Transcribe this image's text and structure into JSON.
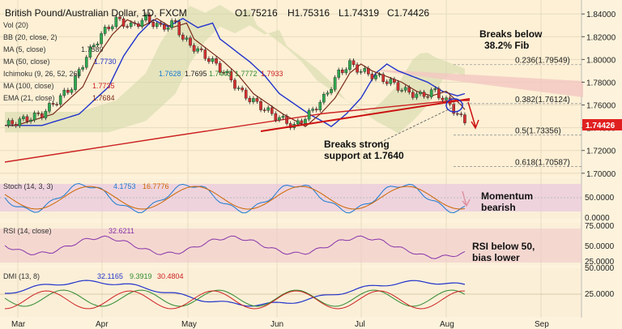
{
  "chart_data": {
    "type": "candlestick",
    "title": "British Pound/Australian Dollar, 1D, FXCM",
    "ohlc": {
      "open": "O1.75216",
      "high": "H1.75316",
      "low": "L1.74319",
      "close": "C1.74426"
    },
    "last_price": "1.74426",
    "x_ticks": [
      "Mar",
      "Apr",
      "May",
      "Jun",
      "Jul",
      "Aug",
      "Sep"
    ],
    "price_axis": {
      "ticks": [
        "1.84000",
        "1.82000",
        "1.80000",
        "1.78000",
        "1.76000",
        "1.74000",
        "1.72000",
        "1.70000"
      ],
      "ylim": [
        1.697,
        1.848
      ]
    },
    "legend": [
      {
        "label": "Vol (20)",
        "value": "",
        "color": "#888888"
      },
      {
        "label": "BB (20, close, 2)",
        "value": "",
        "color": "#888888"
      },
      {
        "label": "MA (5, close)",
        "value": "1.7589",
        "color": "#444444"
      },
      {
        "label": "MA (50, close)",
        "value": "1.7730",
        "color": "#2233cc"
      },
      {
        "label": "Ichimoku (9, 26, 52, 26)",
        "values": [
          "1.7628",
          "1.7695",
          "1.7443",
          "1.7772",
          "1.7933"
        ],
        "colors": [
          "#1a7ad0",
          "#222222",
          "#2f8a2f",
          "#2f8a2f",
          "#cc2222"
        ]
      },
      {
        "label": "MA (100, close)",
        "value": "1.7735",
        "color": "#cc2222"
      },
      {
        "label": "EMA (21, close)",
        "value": "1.7684",
        "color": "#7a2a1a"
      }
    ],
    "fib_levels": [
      {
        "label": "0.236(1.79549)",
        "value": 1.79549
      },
      {
        "label": "0.382(1.76124)",
        "value": 1.76124
      },
      {
        "label": "0.5(1.73356)",
        "value": 1.73356
      },
      {
        "label": "0.618(1.70587)",
        "value": 1.70587
      }
    ],
    "annotations": [
      {
        "text": [
          "Breaks below",
          "38.2% Fib"
        ]
      },
      {
        "text": [
          "Breaks strong",
          "support at 1.7640"
        ]
      },
      {
        "text": [
          "Momentum",
          "bearish"
        ]
      },
      {
        "text": [
          "RSI below 50,",
          "bias lower"
        ]
      }
    ],
    "indicators": {
      "stoch": {
        "label": "Stoch (14, 3, 3)",
        "values": [
          "4.1753",
          "16.7776"
        ],
        "ticks": [
          "50.0000",
          "0.0000"
        ]
      },
      "rsi": {
        "label": "RSI (14, close)",
        "value": "32.6211",
        "ticks": [
          "75.0000",
          "50.0000",
          "25.0000"
        ]
      },
      "dmi": {
        "label": "DMI (13, 8)",
        "values": [
          "32.1165",
          "9.3919",
          "30.4804"
        ],
        "ticks": [
          "50.0000",
          "25.0000"
        ]
      }
    }
  }
}
